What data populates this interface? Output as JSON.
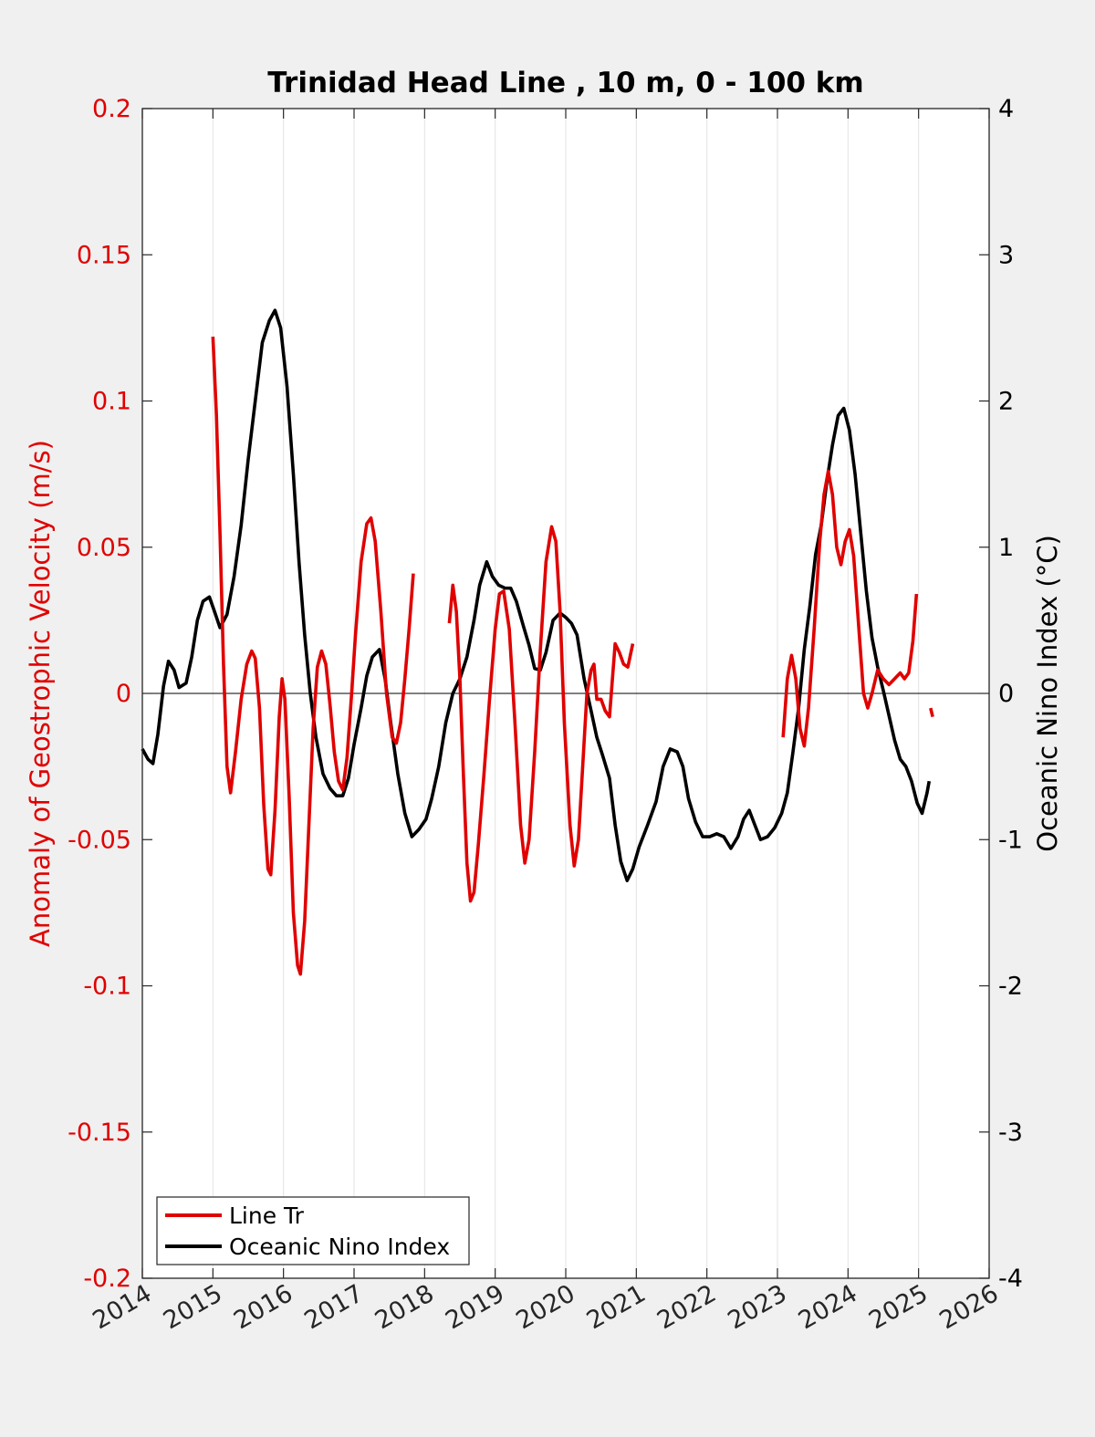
{
  "chart_data": {
    "type": "line",
    "title": "Trinidad Head Line , 10 m, 0 - 100 km",
    "xlabel": "",
    "ylabel_left": "Anomaly of Geostrophic Velocity (m/s)",
    "ylabel_right": "Oceanic Nino Index (°C)",
    "xlim": [
      2014,
      2026
    ],
    "ylim_left": [
      -0.2,
      0.2
    ],
    "ylim_right": [
      -4,
      4
    ],
    "x_ticks": [
      "2014",
      "2015",
      "2016",
      "2017",
      "2018",
      "2019",
      "2020",
      "2021",
      "2022",
      "2023",
      "2024",
      "2025",
      "2026"
    ],
    "y_left_ticks": [
      "-0.2",
      "-0.15",
      "-0.1",
      "-0.05",
      "0",
      "0.05",
      "0.1",
      "0.15",
      "0.2"
    ],
    "y_right_ticks": [
      "-4",
      "-3",
      "-2",
      "-1",
      "0",
      "1",
      "2",
      "3",
      "4"
    ],
    "grid": "vertical",
    "zero_line": true,
    "legend_placement": "bottom-left",
    "colors": {
      "line_tr": "#e00000",
      "oni": "#000000",
      "left_axis": "#e00000",
      "right_axis": "#000000"
    },
    "series": [
      {
        "name": "Line Tr",
        "axis": "left",
        "color": "#e00000",
        "segments": [
          [
            [
              2015.0,
              0.122
            ],
            [
              2015.05,
              0.095
            ],
            [
              2015.1,
              0.055
            ],
            [
              2015.15,
              0.01
            ],
            [
              2015.2,
              -0.025
            ],
            [
              2015.25,
              -0.034
            ],
            [
              2015.32,
              -0.02
            ],
            [
              2015.4,
              -0.002
            ],
            [
              2015.48,
              0.01
            ],
            [
              2015.55,
              0.0145
            ],
            [
              2015.6,
              0.012
            ],
            [
              2015.66,
              -0.005
            ],
            [
              2015.72,
              -0.038
            ],
            [
              2015.78,
              -0.06
            ],
            [
              2015.82,
              -0.062
            ],
            [
              2015.88,
              -0.04
            ],
            [
              2015.94,
              -0.008
            ],
            [
              2015.98,
              0.005
            ],
            [
              2016.02,
              -0.002
            ],
            [
              2016.08,
              -0.035
            ],
            [
              2016.14,
              -0.075
            ],
            [
              2016.2,
              -0.093
            ],
            [
              2016.24,
              -0.096
            ],
            [
              2016.3,
              -0.078
            ],
            [
              2016.36,
              -0.045
            ],
            [
              2016.42,
              -0.012
            ],
            [
              2016.48,
              0.009
            ],
            [
              2016.54,
              0.0145
            ],
            [
              2016.6,
              0.01
            ],
            [
              2016.66,
              -0.004
            ],
            [
              2016.72,
              -0.02
            ],
            [
              2016.78,
              -0.03
            ],
            [
              2016.84,
              -0.033
            ],
            [
              2016.9,
              -0.022
            ],
            [
              2016.96,
              -0.002
            ],
            [
              2017.02,
              0.02
            ],
            [
              2017.1,
              0.045
            ],
            [
              2017.18,
              0.058
            ],
            [
              2017.24,
              0.06
            ],
            [
              2017.3,
              0.052
            ],
            [
              2017.38,
              0.028
            ],
            [
              2017.46,
              0.0
            ],
            [
              2017.54,
              -0.015
            ],
            [
              2017.6,
              -0.017
            ],
            [
              2017.66,
              -0.01
            ],
            [
              2017.72,
              0.005
            ],
            [
              2017.78,
              0.022
            ],
            [
              2017.84,
              0.041
            ]
          ],
          [
            [
              2018.35,
              0.024
            ],
            [
              2018.4,
              0.037
            ],
            [
              2018.45,
              0.028
            ],
            [
              2018.5,
              0.005
            ],
            [
              2018.55,
              -0.028
            ],
            [
              2018.6,
              -0.058
            ],
            [
              2018.65,
              -0.071
            ],
            [
              2018.7,
              -0.068
            ],
            [
              2018.76,
              -0.052
            ],
            [
              2018.84,
              -0.028
            ],
            [
              2018.92,
              -0.002
            ],
            [
              2019.0,
              0.022
            ],
            [
              2019.06,
              0.034
            ],
            [
              2019.12,
              0.035
            ],
            [
              2019.2,
              0.022
            ],
            [
              2019.28,
              -0.01
            ],
            [
              2019.36,
              -0.045
            ],
            [
              2019.42,
              -0.058
            ],
            [
              2019.48,
              -0.05
            ],
            [
              2019.56,
              -0.02
            ],
            [
              2019.64,
              0.015
            ],
            [
              2019.72,
              0.045
            ],
            [
              2019.8,
              0.057
            ],
            [
              2019.86,
              0.052
            ],
            [
              2019.92,
              0.028
            ],
            [
              2019.98,
              -0.01
            ],
            [
              2020.06,
              -0.045
            ],
            [
              2020.12,
              -0.059
            ],
            [
              2020.18,
              -0.05
            ],
            [
              2020.24,
              -0.025
            ],
            [
              2020.3,
              0.0
            ],
            [
              2020.36,
              0.008
            ],
            [
              2020.4,
              0.01
            ],
            [
              2020.44,
              -0.002
            ],
            [
              2020.5,
              -0.002
            ],
            [
              2020.56,
              -0.006
            ],
            [
              2020.62,
              -0.008
            ],
            [
              2020.7,
              0.017
            ],
            [
              2020.76,
              0.014
            ],
            [
              2020.82,
              0.01
            ],
            [
              2020.88,
              0.009
            ],
            [
              2020.95,
              0.017
            ]
          ],
          [
            [
              2023.08,
              -0.015
            ],
            [
              2023.14,
              0.005
            ],
            [
              2023.2,
              0.013
            ],
            [
              2023.26,
              0.005
            ],
            [
              2023.32,
              -0.012
            ],
            [
              2023.38,
              -0.018
            ],
            [
              2023.44,
              -0.005
            ],
            [
              2023.52,
              0.022
            ],
            [
              2023.6,
              0.052
            ],
            [
              2023.66,
              0.068
            ],
            [
              2023.72,
              0.076
            ],
            [
              2023.78,
              0.068
            ],
            [
              2023.84,
              0.05
            ],
            [
              2023.9,
              0.044
            ],
            [
              2023.96,
              0.052
            ],
            [
              2024.02,
              0.056
            ],
            [
              2024.08,
              0.047
            ],
            [
              2024.16,
              0.02
            ],
            [
              2024.22,
              0.0
            ],
            [
              2024.28,
              -0.005
            ],
            [
              2024.34,
              0.0
            ],
            [
              2024.42,
              0.008
            ],
            [
              2024.5,
              0.005
            ],
            [
              2024.58,
              0.003
            ],
            [
              2024.66,
              0.005
            ],
            [
              2024.74,
              0.007
            ],
            [
              2024.8,
              0.005
            ],
            [
              2024.86,
              0.007
            ],
            [
              2024.92,
              0.018
            ],
            [
              2024.97,
              0.034
            ]
          ],
          [
            [
              2025.17,
              -0.005
            ],
            [
              2025.2,
              -0.008
            ]
          ]
        ]
      },
      {
        "name": "Oceanic Nino Index",
        "axis": "right",
        "color": "#000000",
        "segments": [
          [
            [
              2014.0,
              -0.38
            ],
            [
              2014.08,
              -0.45
            ],
            [
              2014.15,
              -0.48
            ],
            [
              2014.22,
              -0.28
            ],
            [
              2014.3,
              0.05
            ],
            [
              2014.37,
              0.22
            ],
            [
              2014.45,
              0.16
            ],
            [
              2014.52,
              0.04
            ],
            [
              2014.62,
              0.07
            ],
            [
              2014.7,
              0.25
            ],
            [
              2014.78,
              0.5
            ],
            [
              2014.86,
              0.63
            ],
            [
              2014.95,
              0.66
            ],
            [
              2015.03,
              0.55
            ],
            [
              2015.1,
              0.45
            ],
            [
              2015.2,
              0.54
            ],
            [
              2015.3,
              0.8
            ],
            [
              2015.4,
              1.15
            ],
            [
              2015.5,
              1.6
            ],
            [
              2015.6,
              2.0
            ],
            [
              2015.7,
              2.4
            ],
            [
              2015.8,
              2.55
            ],
            [
              2015.88,
              2.62
            ],
            [
              2015.96,
              2.5
            ],
            [
              2016.05,
              2.1
            ],
            [
              2016.14,
              1.5
            ],
            [
              2016.22,
              0.9
            ],
            [
              2016.3,
              0.4
            ],
            [
              2016.38,
              0.0
            ],
            [
              2016.46,
              -0.3
            ],
            [
              2016.56,
              -0.55
            ],
            [
              2016.66,
              -0.65
            ],
            [
              2016.75,
              -0.7
            ],
            [
              2016.84,
              -0.7
            ],
            [
              2016.92,
              -0.58
            ],
            [
              2017.0,
              -0.35
            ],
            [
              2017.1,
              -0.1
            ],
            [
              2017.18,
              0.12
            ],
            [
              2017.26,
              0.25
            ],
            [
              2017.36,
              0.3
            ],
            [
              2017.44,
              0.1
            ],
            [
              2017.52,
              -0.2
            ],
            [
              2017.62,
              -0.55
            ],
            [
              2017.72,
              -0.82
            ],
            [
              2017.82,
              -0.98
            ],
            [
              2017.92,
              -0.93
            ],
            [
              2018.02,
              -0.86
            ],
            [
              2018.1,
              -0.72
            ],
            [
              2018.2,
              -0.5
            ],
            [
              2018.3,
              -0.2
            ],
            [
              2018.4,
              0.0
            ],
            [
              2018.5,
              0.1
            ],
            [
              2018.6,
              0.25
            ],
            [
              2018.7,
              0.5
            ],
            [
              2018.78,
              0.74
            ],
            [
              2018.88,
              0.9
            ],
            [
              2018.96,
              0.8
            ],
            [
              2019.05,
              0.74
            ],
            [
              2019.14,
              0.72
            ],
            [
              2019.22,
              0.72
            ],
            [
              2019.3,
              0.63
            ],
            [
              2019.4,
              0.46
            ],
            [
              2019.48,
              0.33
            ],
            [
              2019.56,
              0.17
            ],
            [
              2019.64,
              0.16
            ],
            [
              2019.72,
              0.28
            ],
            [
              2019.82,
              0.5
            ],
            [
              2019.92,
              0.55
            ],
            [
              2020.0,
              0.52
            ],
            [
              2020.08,
              0.48
            ],
            [
              2020.16,
              0.4
            ],
            [
              2020.26,
              0.1
            ],
            [
              2020.36,
              -0.12
            ],
            [
              2020.44,
              -0.3
            ],
            [
              2020.52,
              -0.42
            ],
            [
              2020.62,
              -0.58
            ],
            [
              2020.7,
              -0.9
            ],
            [
              2020.78,
              -1.15
            ],
            [
              2020.87,
              -1.28
            ],
            [
              2020.95,
              -1.2
            ],
            [
              2021.04,
              -1.05
            ],
            [
              2021.16,
              -0.9
            ],
            [
              2021.28,
              -0.74
            ],
            [
              2021.38,
              -0.5
            ],
            [
              2021.48,
              -0.38
            ],
            [
              2021.58,
              -0.4
            ],
            [
              2021.66,
              -0.5
            ],
            [
              2021.74,
              -0.72
            ],
            [
              2021.84,
              -0.88
            ],
            [
              2021.94,
              -0.98
            ],
            [
              2022.04,
              -0.98
            ],
            [
              2022.14,
              -0.96
            ],
            [
              2022.24,
              -0.98
            ],
            [
              2022.34,
              -1.06
            ],
            [
              2022.44,
              -0.98
            ],
            [
              2022.52,
              -0.86
            ],
            [
              2022.6,
              -0.8
            ],
            [
              2022.68,
              -0.9
            ],
            [
              2022.76,
              -1.0
            ],
            [
              2022.86,
              -0.98
            ],
            [
              2022.96,
              -0.92
            ],
            [
              2023.06,
              -0.82
            ],
            [
              2023.14,
              -0.68
            ],
            [
              2023.22,
              -0.4
            ],
            [
              2023.3,
              -0.1
            ],
            [
              2023.38,
              0.3
            ],
            [
              2023.46,
              0.6
            ],
            [
              2023.54,
              0.95
            ],
            [
              2023.62,
              1.15
            ],
            [
              2023.7,
              1.45
            ],
            [
              2023.78,
              1.7
            ],
            [
              2023.86,
              1.9
            ],
            [
              2023.94,
              1.95
            ],
            [
              2024.02,
              1.8
            ],
            [
              2024.1,
              1.5
            ],
            [
              2024.18,
              1.1
            ],
            [
              2024.26,
              0.7
            ],
            [
              2024.34,
              0.38
            ],
            [
              2024.42,
              0.18
            ],
            [
              2024.5,
              0.02
            ],
            [
              2024.58,
              -0.15
            ],
            [
              2024.66,
              -0.32
            ],
            [
              2024.74,
              -0.45
            ],
            [
              2024.82,
              -0.5
            ],
            [
              2024.9,
              -0.6
            ],
            [
              2024.98,
              -0.75
            ],
            [
              2025.05,
              -0.82
            ],
            [
              2025.12,
              -0.68
            ],
            [
              2025.15,
              -0.6
            ]
          ]
        ]
      }
    ]
  }
}
